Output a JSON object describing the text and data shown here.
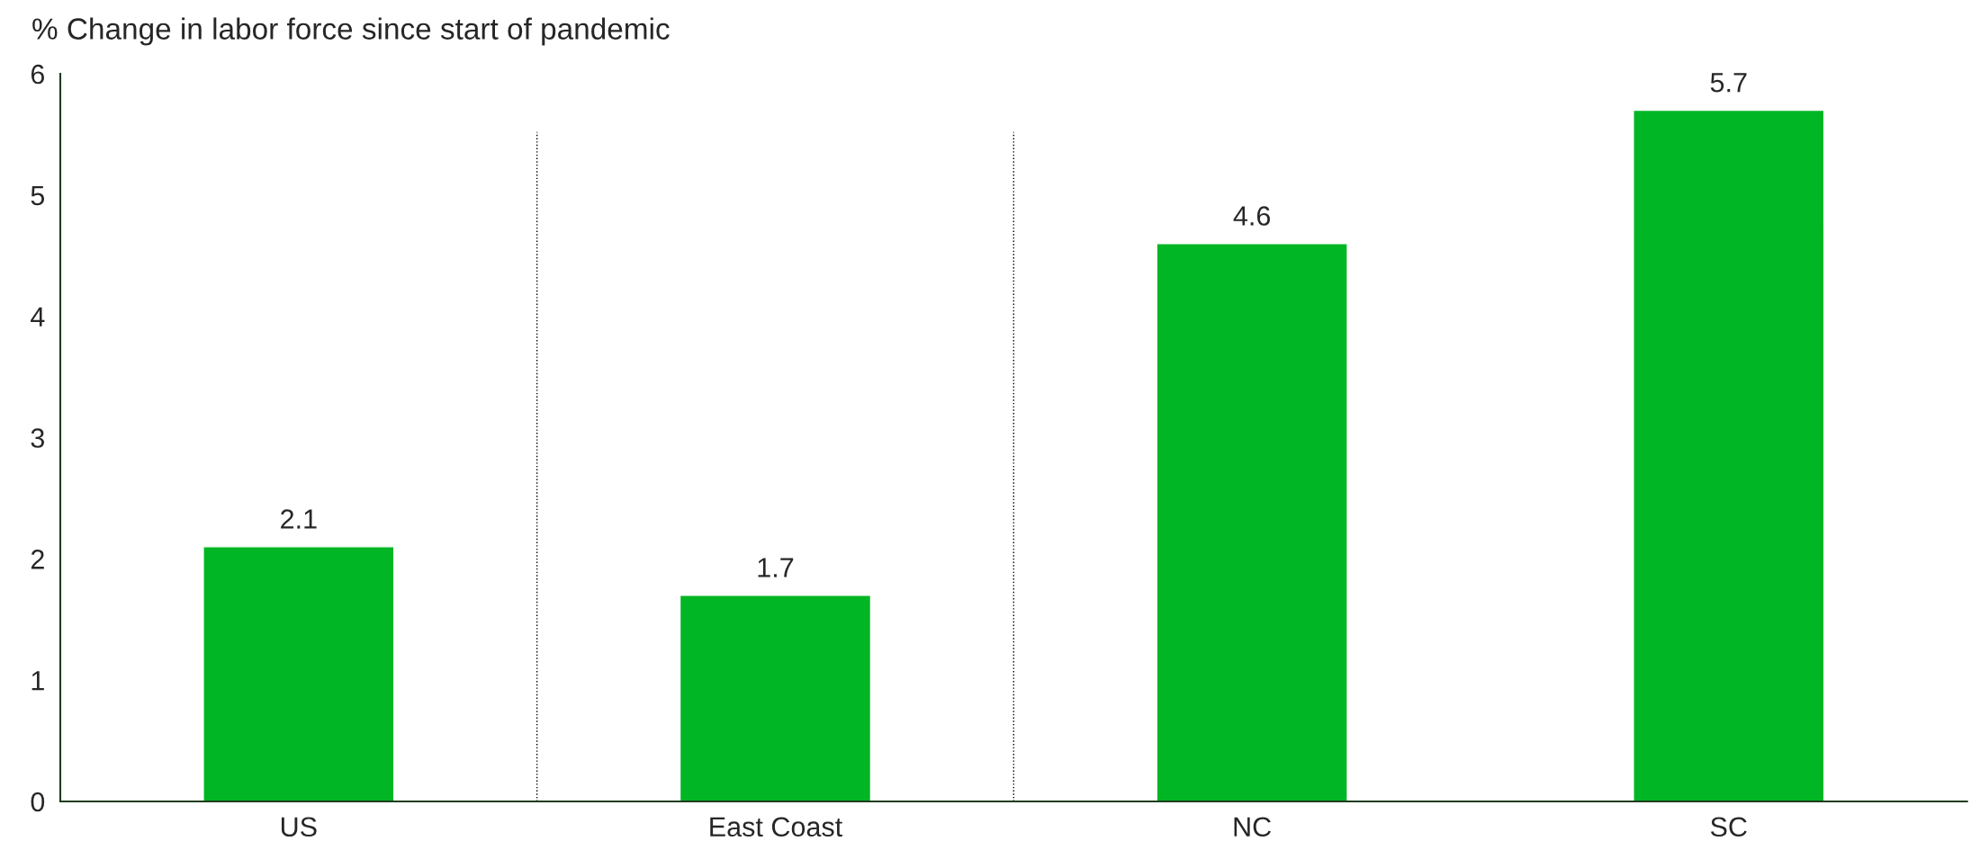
{
  "chart_data": {
    "type": "bar",
    "title": "% Change in labor force since start of pandemic",
    "categories": [
      "US",
      "East Coast",
      "NC",
      "SC"
    ],
    "values": [
      2.1,
      1.7,
      4.6,
      5.7
    ],
    "color": "#00b624",
    "ylim": [
      0,
      6
    ],
    "yticks": [
      0,
      1,
      2,
      3,
      4,
      5,
      6
    ],
    "grid": false,
    "data_labels": true
  }
}
